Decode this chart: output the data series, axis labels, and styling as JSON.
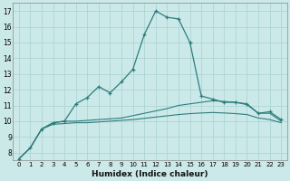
{
  "xlabel": "Humidex (Indice chaleur)",
  "ylabel": "",
  "bg_color": "#cce9e9",
  "grid_color": "#add4d4",
  "line_color": "#2d7d7d",
  "xlim": [
    -0.5,
    23.5
  ],
  "ylim": [
    7.5,
    17.5
  ],
  "xticks": [
    0,
    1,
    2,
    3,
    4,
    5,
    6,
    7,
    8,
    9,
    10,
    11,
    12,
    13,
    14,
    15,
    16,
    17,
    18,
    19,
    20,
    21,
    22,
    23
  ],
  "yticks": [
    8,
    9,
    10,
    11,
    12,
    13,
    14,
    15,
    16,
    17
  ],
  "line1_x": [
    0,
    1,
    2,
    3,
    4,
    5,
    6,
    7,
    8,
    9,
    10,
    11,
    12,
    13,
    14,
    15,
    16,
    17,
    18,
    19,
    20,
    21,
    22,
    23
  ],
  "line1_y": [
    7.6,
    8.3,
    9.5,
    9.9,
    10.0,
    11.1,
    11.5,
    12.2,
    11.8,
    12.5,
    13.3,
    15.5,
    17.0,
    16.6,
    16.5,
    15.0,
    11.6,
    11.4,
    11.2,
    11.2,
    11.1,
    10.5,
    10.6,
    10.1
  ],
  "line2_x": [
    0,
    1,
    2,
    3,
    4,
    5,
    6,
    7,
    8,
    9,
    10,
    11,
    12,
    13,
    14,
    15,
    16,
    17,
    18,
    19,
    20,
    21,
    22,
    23
  ],
  "line2_y": [
    7.6,
    8.3,
    9.5,
    9.9,
    10.0,
    10.0,
    10.05,
    10.1,
    10.15,
    10.2,
    10.35,
    10.5,
    10.65,
    10.8,
    11.0,
    11.1,
    11.2,
    11.3,
    11.25,
    11.2,
    11.05,
    10.5,
    10.5,
    10.0
  ],
  "line3_x": [
    0,
    1,
    2,
    3,
    4,
    5,
    6,
    7,
    8,
    9,
    10,
    11,
    12,
    13,
    14,
    15,
    16,
    17,
    18,
    19,
    20,
    21,
    22,
    23
  ],
  "line3_y": [
    7.6,
    8.3,
    9.5,
    9.8,
    9.85,
    9.9,
    9.9,
    9.95,
    10.0,
    10.05,
    10.1,
    10.18,
    10.26,
    10.34,
    10.42,
    10.48,
    10.52,
    10.55,
    10.52,
    10.48,
    10.42,
    10.2,
    10.1,
    9.9
  ]
}
